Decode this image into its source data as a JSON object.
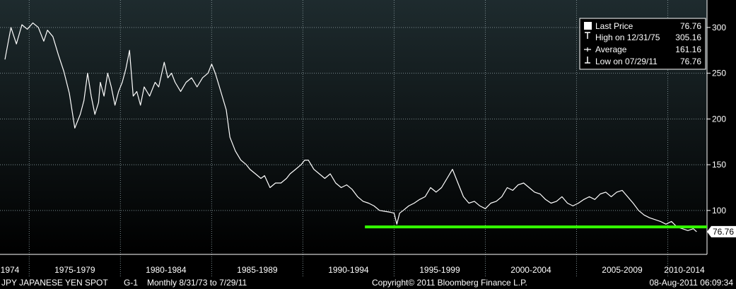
{
  "chart_data": {
    "type": "line",
    "title": "",
    "xlabel": "",
    "ylabel": "",
    "ylim": [
      52,
      330
    ],
    "xlim": [
      1973.4,
      2012.15
    ],
    "y_ticks": [
      100,
      150,
      200,
      250,
      300
    ],
    "y_tick_labels": [
      "100",
      "150",
      "200",
      "250",
      "300"
    ],
    "x_period_labels": [
      {
        "label": "1974",
        "x": 1973.9
      },
      {
        "label": "1975-1979",
        "x": 1977.5
      },
      {
        "label": "1980-1984",
        "x": 1982.5
      },
      {
        "label": "1985-1989",
        "x": 1987.5
      },
      {
        "label": "1990-1994",
        "x": 1992.5
      },
      {
        "label": "1995-1999",
        "x": 1997.5
      },
      {
        "label": "2000-2004",
        "x": 2002.5
      },
      {
        "label": "2005-2009",
        "x": 2007.5
      },
      {
        "label": "2010-2014",
        "x": 2011.6
      }
    ],
    "x_separators": [
      1975,
      1980,
      1985,
      1990,
      1995,
      2000,
      2005,
      2010
    ],
    "grid": true,
    "legend_position": "top-right",
    "series": [
      {
        "name": "Last Price",
        "color": "#ffffff",
        "x": [
          1973.67,
          1974.0,
          1974.3,
          1974.6,
          1974.9,
          1975.2,
          1975.5,
          1975.8,
          1976.0,
          1976.3,
          1976.6,
          1976.9,
          1977.2,
          1977.5,
          1977.8,
          1978.0,
          1978.2,
          1978.4,
          1978.6,
          1978.8,
          1978.9,
          1979.1,
          1979.3,
          1979.5,
          1979.7,
          1979.9,
          1980.1,
          1980.3,
          1980.5,
          1980.7,
          1980.9,
          1981.1,
          1981.3,
          1981.6,
          1981.9,
          1982.1,
          1982.4,
          1982.6,
          1982.8,
          1983.0,
          1983.3,
          1983.6,
          1983.9,
          1984.2,
          1984.5,
          1984.8,
          1985.0,
          1985.2,
          1985.5,
          1985.8,
          1986.0,
          1986.3,
          1986.6,
          1986.9,
          1987.1,
          1987.4,
          1987.7,
          1987.9,
          1988.2,
          1988.5,
          1988.8,
          1989.1,
          1989.3,
          1989.6,
          1989.9,
          1990.1,
          1990.3,
          1990.6,
          1990.9,
          1991.2,
          1991.5,
          1991.8,
          1992.1,
          1992.4,
          1992.7,
          1993.0,
          1993.3,
          1993.6,
          1993.9,
          1994.2,
          1994.5,
          1994.8,
          1995.0,
          1995.15,
          1995.3,
          1995.5,
          1995.8,
          1996.1,
          1996.4,
          1996.7,
          1997.0,
          1997.3,
          1997.6,
          1997.9,
          1998.2,
          1998.5,
          1998.8,
          1999.1,
          1999.4,
          1999.7,
          2000.0,
          2000.3,
          2000.6,
          2000.9,
          2001.2,
          2001.5,
          2001.8,
          2002.1,
          2002.4,
          2002.7,
          2003.0,
          2003.3,
          2003.6,
          2003.9,
          2004.2,
          2004.5,
          2004.8,
          2005.1,
          2005.4,
          2005.7,
          2006.0,
          2006.3,
          2006.6,
          2006.9,
          2007.2,
          2007.5,
          2007.8,
          2008.1,
          2008.4,
          2008.7,
          2009.0,
          2009.3,
          2009.6,
          2009.9,
          2010.2,
          2010.5,
          2010.8,
          2011.1,
          2011.4,
          2011.58
        ],
        "values": [
          265,
          300,
          282,
          303,
          298,
          305,
          300,
          285,
          297,
          290,
          270,
          252,
          228,
          190,
          205,
          220,
          250,
          225,
          205,
          218,
          240,
          225,
          250,
          235,
          215,
          230,
          240,
          255,
          275,
          225,
          230,
          215,
          235,
          225,
          240,
          235,
          262,
          245,
          250,
          240,
          230,
          240,
          245,
          235,
          245,
          250,
          260,
          250,
          230,
          210,
          180,
          165,
          155,
          150,
          145,
          140,
          135,
          138,
          125,
          130,
          130,
          135,
          140,
          145,
          150,
          155,
          155,
          145,
          140,
          135,
          140,
          130,
          125,
          128,
          123,
          115,
          110,
          108,
          105,
          100,
          99,
          98,
          97,
          85,
          97,
          100,
          105,
          108,
          112,
          115,
          125,
          120,
          125,
          135,
          145,
          130,
          115,
          108,
          110,
          105,
          102,
          108,
          110,
          115,
          125,
          122,
          128,
          130,
          125,
          120,
          118,
          112,
          108,
          110,
          115,
          108,
          105,
          108,
          112,
          115,
          112,
          118,
          120,
          115,
          120,
          122,
          115,
          108,
          100,
          95,
          92,
          90,
          88,
          85,
          88,
          82,
          80,
          78,
          80,
          76.76
        ]
      }
    ],
    "reference_line": {
      "y": 82,
      "x_start": 1993.4,
      "x_end": 2012.15,
      "color": "#33ff00"
    },
    "legend": {
      "items": [
        {
          "marker": "square",
          "label": "Last Price",
          "value": "76.76"
        },
        {
          "marker": "high",
          "label": "High on 12/31/75",
          "value": "305.16"
        },
        {
          "marker": "average",
          "label": "Average",
          "value": "161.16"
        },
        {
          "marker": "low",
          "label": "Low on 07/29/11",
          "value": "76.76"
        }
      ]
    },
    "last_value_label": "76.76"
  },
  "footer": {
    "left": "JPY  JAPANESE YEN SPOT",
    "chart_id": "G-1",
    "period": "Monthly  8/31/73 to 7/29/11",
    "copyright": "Copyright© 2011 Bloomberg Finance L.P.",
    "timestamp": "08-Aug-2011 06:09:34"
  },
  "colors": {
    "background_top": "#1e2a2d",
    "background_bottom": "#000000",
    "line": "#ffffff",
    "grid": "#7a8a8e",
    "reference": "#33ff00"
  }
}
